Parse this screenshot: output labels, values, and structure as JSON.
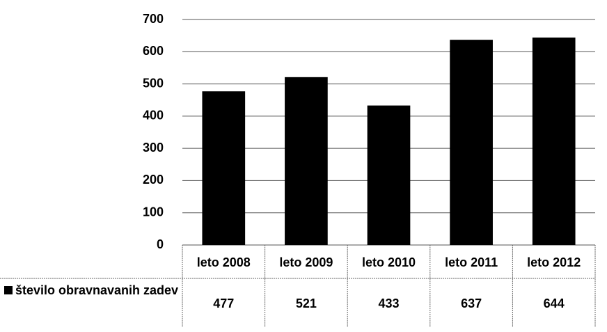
{
  "chart_data": {
    "type": "bar",
    "categories": [
      "leto 2008",
      "leto 2009",
      "leto 2010",
      "leto 2011",
      "leto 2012"
    ],
    "series": [
      {
        "name": "število obravnavanih zadev",
        "color": "#000000",
        "values": [
          477,
          521,
          433,
          637,
          644
        ]
      }
    ],
    "ylim": [
      0,
      700
    ],
    "yticks": [
      0,
      100,
      200,
      300,
      400,
      500,
      600,
      700
    ],
    "grid": true,
    "data_table": true
  }
}
